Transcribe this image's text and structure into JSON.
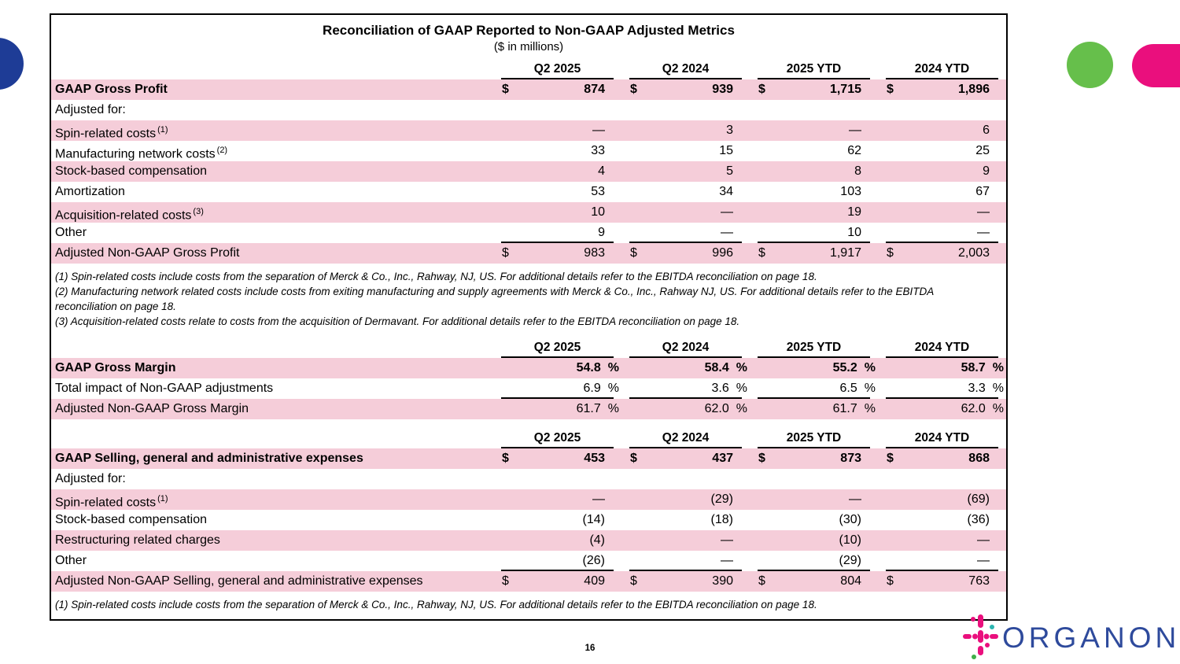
{
  "slide": {
    "title": "Reconciliation of GAAP Reported to Non-GAAP Adjusted Metrics",
    "subtitle": "($ in millions)",
    "page_number": "16"
  },
  "columns": [
    "Q2 2025",
    "Q2 2024",
    "2025 YTD",
    "2024 YTD"
  ],
  "colors": {
    "row_pink": "#f5cdd9",
    "magenta": "#ea0f7d",
    "green": "#66bf4b",
    "blue": "#1e3c96",
    "wordmark_blue": "#2e4a9c",
    "teal": "#2bb5b0",
    "logo_green": "#3faf49"
  },
  "tables": [
    {
      "name": "gross-profit-reconciliation",
      "pct": false,
      "rows": [
        {
          "label": "GAAP Gross Profit",
          "bold": true,
          "pink": true,
          "cells": [
            {
              "d": "$",
              "v": "874"
            },
            {
              "d": "$",
              "v": "939"
            },
            {
              "d": "$",
              "v": "1,715"
            },
            {
              "d": "$",
              "v": "1,896"
            }
          ]
        },
        {
          "label": "Adjusted for:",
          "pink": false,
          "cells": [
            null,
            null,
            null,
            null
          ]
        },
        {
          "label": "Spin-related costs",
          "sup": "(1)",
          "pink": true,
          "cells": [
            {
              "v": "—"
            },
            {
              "v": "3"
            },
            {
              "v": "—"
            },
            {
              "v": "6"
            }
          ]
        },
        {
          "label": "Manufacturing network costs",
          "sup": "(2)",
          "pink": false,
          "cells": [
            {
              "v": "33"
            },
            {
              "v": "15"
            },
            {
              "v": "62"
            },
            {
              "v": "25"
            }
          ]
        },
        {
          "label": "Stock-based compensation",
          "pink": true,
          "cells": [
            {
              "v": "4"
            },
            {
              "v": "5"
            },
            {
              "v": "8"
            },
            {
              "v": "9"
            }
          ]
        },
        {
          "label": "Amortization",
          "pink": false,
          "cells": [
            {
              "v": "53"
            },
            {
              "v": "34"
            },
            {
              "v": "103"
            },
            {
              "v": "67"
            }
          ]
        },
        {
          "label": "Acquisition-related costs",
          "sup": "(3)",
          "pink": true,
          "cells": [
            {
              "v": "10"
            },
            {
              "v": "—"
            },
            {
              "v": "19"
            },
            {
              "v": "—"
            }
          ]
        },
        {
          "label": "Other",
          "pink": false,
          "rule": true,
          "cells": [
            {
              "v": "9"
            },
            {
              "v": "—"
            },
            {
              "v": "10"
            },
            {
              "v": "—"
            }
          ]
        },
        {
          "label": "Adjusted Non-GAAP Gross Profit",
          "pink": true,
          "cells": [
            {
              "d": "$",
              "v": "983"
            },
            {
              "d": "$",
              "v": "996"
            },
            {
              "d": "$",
              "v": "1,917"
            },
            {
              "d": "$",
              "v": "2,003"
            }
          ]
        }
      ],
      "footnotes": [
        "(1) Spin-related costs include costs from the separation of Merck & Co., Inc., Rahway, NJ, US. For additional details refer to the EBITDA reconciliation on page 18.",
        "(2) Manufacturing network related costs include costs from exiting manufacturing and supply agreements with Merck & Co., Inc., Rahway NJ, US. For additional details refer to the EBITDA reconciliation on page 18.",
        "(3) Acquisition-related costs relate to costs from the acquisition of Dermavant. For additional details refer to the EBITDA reconciliation on page 18."
      ]
    },
    {
      "name": "gross-margin-reconciliation",
      "pct": true,
      "rows": [
        {
          "label": "GAAP Gross Margin",
          "bold": true,
          "pink": true,
          "cells": [
            {
              "v": "54.8",
              "u": "%"
            },
            {
              "v": "58.4",
              "u": "%"
            },
            {
              "v": "55.2",
              "u": "%"
            },
            {
              "v": "58.7",
              "u": "%"
            }
          ]
        },
        {
          "label": "Total impact of Non-GAAP adjustments",
          "pink": false,
          "rule": true,
          "cells": [
            {
              "v": "6.9",
              "u": "%"
            },
            {
              "v": "3.6",
              "u": "%"
            },
            {
              "v": "6.5",
              "u": "%"
            },
            {
              "v": "3.3",
              "u": "%"
            }
          ]
        },
        {
          "label": "Adjusted Non-GAAP Gross Margin",
          "pink": true,
          "cells": [
            {
              "v": "61.7",
              "u": "%"
            },
            {
              "v": "62.0",
              "u": "%"
            },
            {
              "v": "61.7",
              "u": "%"
            },
            {
              "v": "62.0",
              "u": "%"
            }
          ]
        }
      ],
      "footnotes": []
    },
    {
      "name": "sga-reconciliation",
      "pct": false,
      "rows": [
        {
          "label": "GAAP Selling, general and administrative expenses",
          "bold": true,
          "pink": true,
          "cells": [
            {
              "d": "$",
              "v": "453"
            },
            {
              "d": "$",
              "v": "437"
            },
            {
              "d": "$",
              "v": "873"
            },
            {
              "d": "$",
              "v": "868"
            }
          ]
        },
        {
          "label": "Adjusted for:",
          "pink": false,
          "cells": [
            null,
            null,
            null,
            null
          ]
        },
        {
          "label": "Spin-related costs",
          "sup": "(1)",
          "pink": true,
          "cells": [
            {
              "v": "—"
            },
            {
              "v": "(29)"
            },
            {
              "v": "—"
            },
            {
              "v": "(69)"
            }
          ]
        },
        {
          "label": "Stock-based compensation",
          "pink": false,
          "cells": [
            {
              "v": "(14)"
            },
            {
              "v": "(18)"
            },
            {
              "v": "(30)"
            },
            {
              "v": "(36)"
            }
          ]
        },
        {
          "label": "Restructuring related charges",
          "pink": true,
          "cells": [
            {
              "v": "(4)"
            },
            {
              "v": "—"
            },
            {
              "v": "(10)"
            },
            {
              "v": "—"
            }
          ]
        },
        {
          "label": "Other",
          "pink": false,
          "rule": true,
          "cells": [
            {
              "v": "(26)"
            },
            {
              "v": "—"
            },
            {
              "v": "(29)"
            },
            {
              "v": "—"
            }
          ]
        },
        {
          "label": "Adjusted Non-GAAP Selling, general and administrative expenses",
          "pink": true,
          "cells": [
            {
              "d": "$",
              "v": "409"
            },
            {
              "d": "$",
              "v": "390"
            },
            {
              "d": "$",
              "v": "804"
            },
            {
              "d": "$",
              "v": "763"
            }
          ]
        }
      ],
      "footnotes": [
        "(1) Spin-related costs include costs from the separation of Merck & Co., Inc., Rahway, NJ, US. For additional details refer to the EBITDA reconciliation on page 18."
      ]
    }
  ],
  "logo": {
    "wordmark": "ORGANON",
    "trademark": "™"
  }
}
